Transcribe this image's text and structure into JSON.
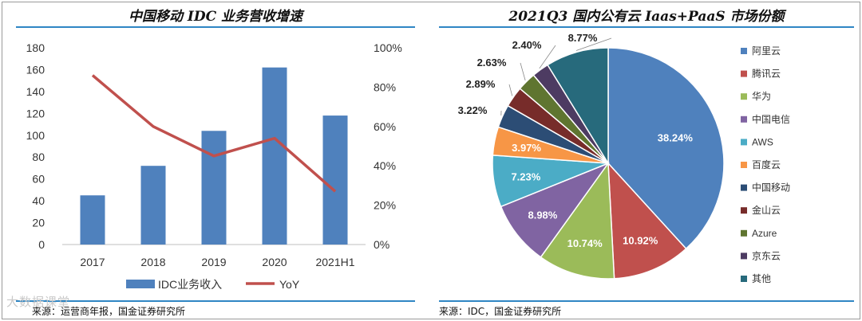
{
  "left_panel": {
    "chart_data": {
      "type": "bar",
      "title": "中国移动 IDC 业务营收增速",
      "categories": [
        "2017",
        "2018",
        "2019",
        "2020",
        "2021H1"
      ],
      "series": [
        {
          "name": "IDC业务收入",
          "type": "bar",
          "axis": "left",
          "values": [
            45,
            72,
            104,
            162,
            118
          ],
          "color": "#4f81bd"
        },
        {
          "name": "YoY",
          "type": "line",
          "axis": "right",
          "values": [
            86,
            60,
            45,
            54,
            27
          ],
          "color": "#c0504d"
        }
      ],
      "y_left": {
        "ticks": [
          "0",
          "20",
          "40",
          "60",
          "80",
          "100",
          "120",
          "140",
          "160",
          "180"
        ],
        "ylim": [
          0,
          180
        ]
      },
      "y_right": {
        "ticks": [
          "0%",
          "20%",
          "40%",
          "60%",
          "80%",
          "100%"
        ],
        "ylim": [
          0,
          100
        ]
      }
    },
    "source": "来源：运营商年报，国金证券研究所"
  },
  "right_panel": {
    "chart_data": {
      "type": "pie",
      "title": "2021Q3 国内公有云 Iaas+PaaS 市场份额",
      "slices": [
        {
          "label": "阿里云",
          "value": 38.24,
          "text": "38.24%",
          "color": "#4f81bd"
        },
        {
          "label": "腾讯云",
          "value": 10.92,
          "text": "10.92%",
          "color": "#c0504d"
        },
        {
          "label": "华为",
          "value": 10.74,
          "text": "10.74%",
          "color": "#9bbb59"
        },
        {
          "label": "中国电信",
          "value": 8.98,
          "text": "8.98%",
          "color": "#8064a2"
        },
        {
          "label": "AWS",
          "value": 7.23,
          "text": "7.23%",
          "color": "#4bacc6"
        },
        {
          "label": "百度云",
          "value": 3.97,
          "text": "3.97%",
          "color": "#f79646"
        },
        {
          "label": "中国移动",
          "value": 3.22,
          "text": "3.22%",
          "color": "#2c4d75"
        },
        {
          "label": "金山云",
          "value": 2.89,
          "text": "2.89%",
          "color": "#772c2a"
        },
        {
          "label": "Azure",
          "value": 2.63,
          "text": "2.63%",
          "color": "#5f7530"
        },
        {
          "label": "京东云",
          "value": 2.4,
          "text": "2.40%",
          "color": "#4d3b62"
        },
        {
          "label": "其他",
          "value": 8.77,
          "text": "8.77%",
          "color": "#276a7c"
        }
      ]
    },
    "source": "来源：IDC，国金证券研究所"
  },
  "watermark": "大数据课堂"
}
